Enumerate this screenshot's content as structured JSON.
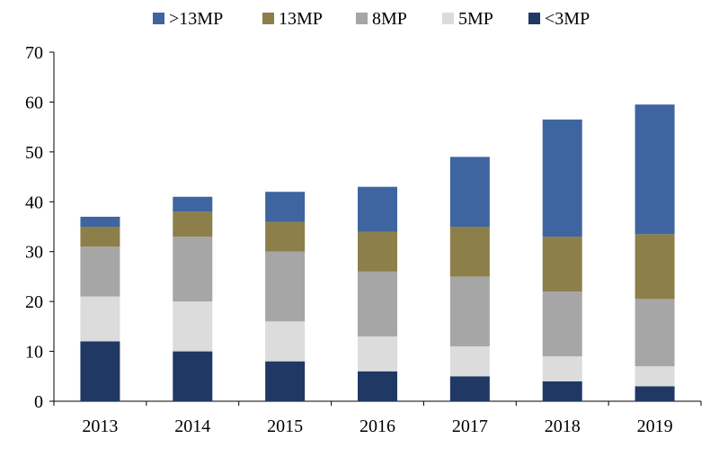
{
  "chart_data": {
    "type": "bar",
    "stacked": true,
    "categories": [
      "2013",
      "2014",
      "2015",
      "2016",
      "2017",
      "2018",
      "2019"
    ],
    "series": [
      {
        "name": "<3MP",
        "color": "#1f3864",
        "values": [
          12,
          10,
          8,
          6,
          5,
          4,
          3
        ]
      },
      {
        "name": "5MP",
        "color": "#dcdcdc",
        "values": [
          9,
          10,
          8,
          7,
          6,
          5,
          4
        ]
      },
      {
        "name": "8MP",
        "color": "#a6a6a6",
        "values": [
          10,
          13,
          14,
          13,
          14,
          13,
          13.5
        ]
      },
      {
        "name": "13MP",
        "color": "#8c7f4a",
        "values": [
          4,
          5,
          6,
          8,
          10,
          11,
          13
        ]
      },
      {
        "name": ">13MP",
        "color": "#3f65a0",
        "values": [
          2,
          3,
          6,
          9,
          14,
          23.5,
          26
        ]
      }
    ],
    "legend_order": [
      ">13MP",
      "13MP",
      "8MP",
      "5MP",
      "<3MP"
    ],
    "legend_position": "top",
    "ylim": [
      0,
      70
    ],
    "yticks": [
      0,
      10,
      20,
      30,
      40,
      50,
      60,
      70
    ],
    "grid": false,
    "title": "",
    "xlabel": "",
    "ylabel": ""
  }
}
